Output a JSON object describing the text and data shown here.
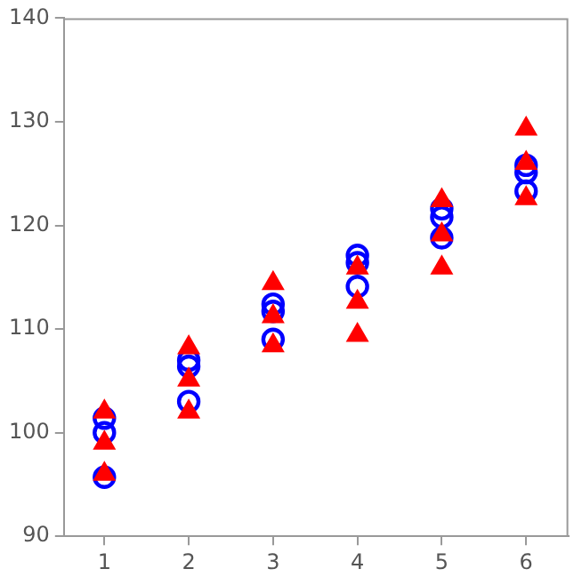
{
  "chart_data": {
    "type": "scatter",
    "xlim": [
      0.52,
      6.5
    ],
    "xticks": [
      1,
      2,
      3,
      4,
      5,
      6
    ],
    "ylim": [
      90,
      140
    ],
    "yticks": [
      90,
      100,
      110,
      120,
      130,
      140
    ],
    "grid": false,
    "legend": false,
    "series": [
      {
        "color": "#0000ff",
        "marker": "circle",
        "x": [
          1,
          1,
          1,
          2,
          2,
          2,
          3,
          3,
          3,
          4,
          4,
          4,
          5,
          5,
          5,
          6,
          6,
          6
        ],
        "values": [
          101.4,
          100.0,
          95.7,
          107.0,
          106.4,
          103.0,
          112.4,
          111.7,
          109.0,
          117.1,
          116.4,
          114.1,
          121.6,
          120.8,
          118.8,
          125.8,
          125.1,
          123.3
        ]
      },
      {
        "color": "#ff0000",
        "marker": "triangle",
        "x": [
          1,
          1,
          1,
          2,
          2,
          2,
          3,
          3,
          3,
          4,
          4,
          4,
          5,
          5,
          5,
          6,
          6,
          6
        ],
        "values": [
          102.0,
          99.0,
          96.0,
          108.2,
          105.1,
          102.0,
          114.4,
          111.2,
          108.4,
          115.9,
          112.6,
          109.4,
          122.4,
          119.1,
          115.9,
          129.3,
          126.0,
          122.6
        ]
      }
    ]
  }
}
